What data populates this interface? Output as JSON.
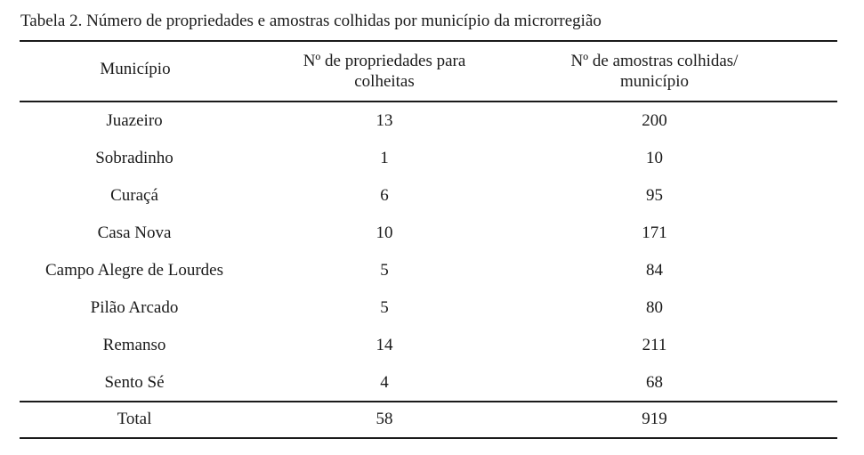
{
  "caption": "Tabela 2. Número de propriedades e amostras colhidas por município da microrregião",
  "headers": [
    "Município",
    "Nº de propriedades para colheitas",
    "Nº de amostras colhidas/ município"
  ],
  "rows": [
    {
      "municipio": "Juazeiro",
      "propriedades": "13",
      "amostras": "200"
    },
    {
      "municipio": "Sobradinho",
      "propriedades": "1",
      "amostras": "10"
    },
    {
      "municipio": "Curaçá",
      "propriedades": "6",
      "amostras": "95"
    },
    {
      "municipio": "Casa Nova",
      "propriedades": "10",
      "amostras": "171"
    },
    {
      "municipio": "Campo Alegre de Lourdes",
      "propriedades": "5",
      "amostras": "84"
    },
    {
      "municipio": "Pilão Arcado",
      "propriedades": "5",
      "amostras": "80"
    },
    {
      "municipio": "Remanso",
      "propriedades": "14",
      "amostras": "211"
    },
    {
      "municipio": "Sento Sé",
      "propriedades": "4",
      "amostras": "68"
    }
  ],
  "total": {
    "label": "Total",
    "propriedades": "58",
    "amostras": "919"
  }
}
